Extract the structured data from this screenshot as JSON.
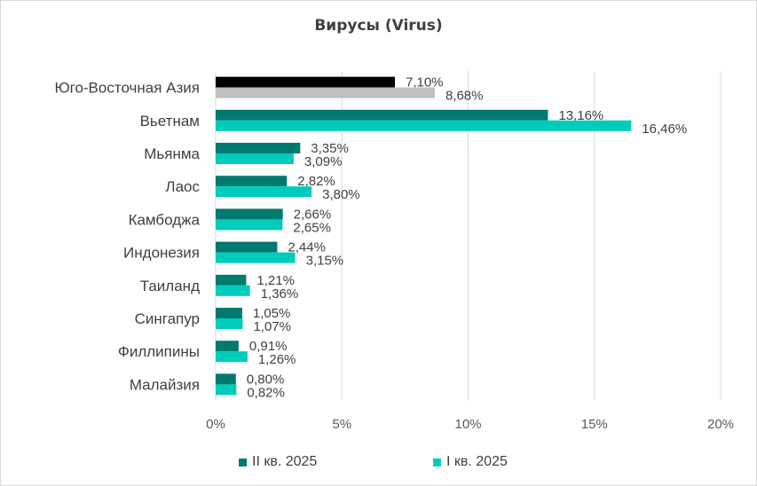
{
  "chart_data": {
    "type": "bar",
    "orientation": "horizontal",
    "title": "Вирусы (Virus)",
    "categories": [
      "Юго-Восточная Азия",
      "Вьетнам",
      "Мьянма",
      "Лаос",
      "Камбоджа",
      "Индонезия",
      "Таиланд",
      "Сингапур",
      "Филлипины",
      "Малайзия"
    ],
    "series": [
      {
        "name": "II кв. 2025",
        "color": "#007A6E",
        "highlight_color": "#000000",
        "values": [
          7.1,
          13.16,
          3.35,
          2.82,
          2.66,
          2.44,
          1.21,
          1.05,
          0.91,
          0.8
        ],
        "labels": [
          "7,10%",
          "13,16%",
          "3,35%",
          "2,82%",
          "2,66%",
          "2,44%",
          "1,21%",
          "1,05%",
          "0,91%",
          "0,80%"
        ]
      },
      {
        "name": "I кв. 2025",
        "color": "#00CCBB",
        "highlight_color": "#BFBFBF",
        "values": [
          8.68,
          16.46,
          3.09,
          3.8,
          2.65,
          3.15,
          1.36,
          1.07,
          1.26,
          0.82
        ],
        "labels": [
          "8,68%",
          "16,46%",
          "3,09%",
          "3,80%",
          "2,65%",
          "3,15%",
          "1,36%",
          "1,07%",
          "1,26%",
          "0,82%"
        ]
      }
    ],
    "xlim": [
      0,
      20
    ],
    "x_ticks": [
      0,
      5,
      10,
      15,
      20
    ],
    "x_tick_labels": [
      "0%",
      "5%",
      "10%",
      "15%",
      "20%"
    ],
    "grid": true,
    "grid_color": "#d9d9d9",
    "legend_position": "bottom"
  }
}
